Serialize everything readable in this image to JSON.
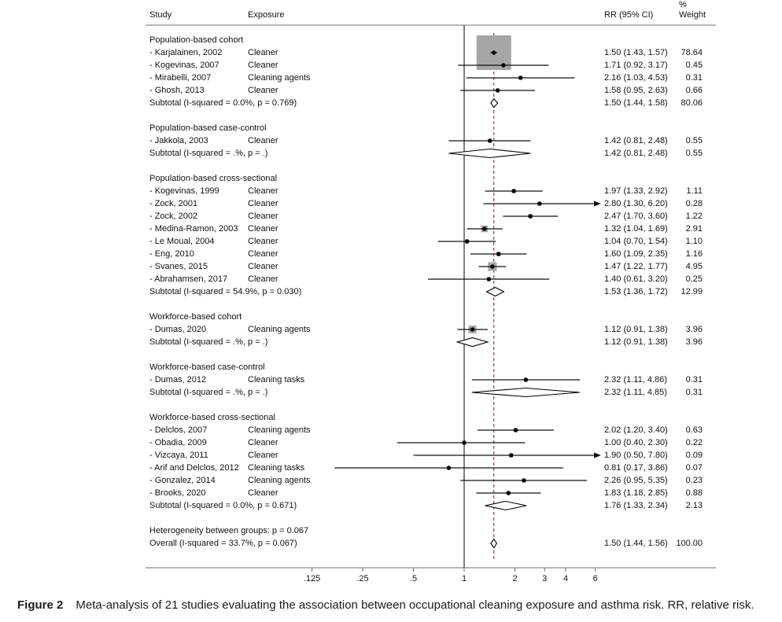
{
  "figure": {
    "caption_label": "Figure 2",
    "caption_text": "Meta-analysis of 21 studies evaluating the association between occupational cleaning exposure and asthma risk. RR, relative risk."
  },
  "header": {
    "study": "Study",
    "exposure": "Exposure",
    "rr": "RR (95% CI)",
    "percent": "%",
    "weight": "Weight"
  },
  "colors": {
    "rule": "#6e6e6e",
    "null_line": "#2b2b2b",
    "overall_dashed_line": "#9e3a4f",
    "ci_line": "#111111",
    "marker_box": "#a6a6a6",
    "marker_dot": "#000000",
    "diamond_fill": "#ffffff",
    "diamond_stroke": "#000000"
  },
  "chart_data": {
    "type": "forest",
    "title": "Meta-analysis of 21 studies: occupational cleaning exposure and asthma risk",
    "x_scale": "log",
    "x_ticks": [
      ".125",
      ".25",
      ".5",
      "1",
      "2",
      "3",
      "4",
      "6"
    ],
    "x_tick_values": [
      0.125,
      0.25,
      0.5,
      1,
      2,
      3,
      4,
      6
    ],
    "x_range": [
      0.1,
      8
    ],
    "null_value": 1,
    "overall_estimate": 1.5,
    "effect_measure": "RR (95% CI)",
    "rows": [
      {
        "type": "group",
        "label": "Population-based cohort"
      },
      {
        "type": "study",
        "study": "- Karjalainen, 2002",
        "exposure": "Cleaner",
        "rr": 1.5,
        "lo": 1.43,
        "hi": 1.57,
        "weight": 78.64,
        "rr_text": "1.50 (1.43, 1.57)",
        "weight_text": "78.64"
      },
      {
        "type": "study",
        "study": "- Kogevinas, 2007",
        "exposure": "Cleaner",
        "rr": 1.71,
        "lo": 0.92,
        "hi": 3.17,
        "weight": 0.45,
        "rr_text": "1.71 (0.92, 3.17)",
        "weight_text": "0.45"
      },
      {
        "type": "study",
        "study": "- Mirabelli, 2007",
        "exposure": "Cleaning agents",
        "rr": 2.16,
        "lo": 1.03,
        "hi": 4.53,
        "weight": 0.31,
        "rr_text": "2.16 (1.03, 4.53)",
        "weight_text": "0.31"
      },
      {
        "type": "study",
        "study": "- Ghosh, 2013",
        "exposure": "Cleaner",
        "rr": 1.58,
        "lo": 0.95,
        "hi": 2.63,
        "weight": 0.66,
        "rr_text": "1.58 (0.95, 2.63)",
        "weight_text": "0.66"
      },
      {
        "type": "subtotal",
        "label": "Subtotal  (I-squared = 0.0%, p = 0.769)",
        "rr": 1.5,
        "lo": 1.44,
        "hi": 1.58,
        "rr_text": "1.50 (1.44, 1.58)",
        "weight_text": "80.06"
      },
      {
        "type": "spacer"
      },
      {
        "type": "group",
        "label": "Population-based case-control"
      },
      {
        "type": "study",
        "study": "- Jakkola, 2003",
        "exposure": "Cleaner",
        "rr": 1.42,
        "lo": 0.81,
        "hi": 2.48,
        "weight": 0.55,
        "rr_text": "1.42 (0.81, 2.48)",
        "weight_text": "0.55"
      },
      {
        "type": "subtotal",
        "label": "Subtotal  (I-squared = .%, p = .)",
        "rr": 1.42,
        "lo": 0.81,
        "hi": 2.48,
        "rr_text": "1.42 (0.81, 2.48)",
        "weight_text": "0.55"
      },
      {
        "type": "spacer"
      },
      {
        "type": "group",
        "label": "Population-based cross-sectional"
      },
      {
        "type": "study",
        "study": "- Kogevinas, 1999",
        "exposure": "Cleaner",
        "rr": 1.97,
        "lo": 1.33,
        "hi": 2.92,
        "weight": 1.11,
        "rr_text": "1.97 (1.33, 2.92)",
        "weight_text": "1.11"
      },
      {
        "type": "study",
        "study": "- Zock, 2001",
        "exposure": "Cleaner",
        "rr": 2.8,
        "lo": 1.3,
        "hi": 6.2,
        "weight": 0.28,
        "rr_text": "2.80 (1.30, 6.20)",
        "weight_text": "0.28",
        "arrow": true
      },
      {
        "type": "study",
        "study": "- Zock, 2002",
        "exposure": "Cleaner",
        "rr": 2.47,
        "lo": 1.7,
        "hi": 3.6,
        "weight": 1.22,
        "rr_text": "2.47 (1.70, 3.60)",
        "weight_text": "1.22"
      },
      {
        "type": "study",
        "study": "- Medina-Ramon, 2003",
        "exposure": "Cleaner",
        "rr": 1.32,
        "lo": 1.04,
        "hi": 1.69,
        "weight": 2.91,
        "rr_text": "1.32 (1.04, 1.69)",
        "weight_text": "2.91"
      },
      {
        "type": "study",
        "study": "- Le Moual, 2004",
        "exposure": "Cleaner",
        "rr": 1.04,
        "lo": 0.7,
        "hi": 1.54,
        "weight": 1.1,
        "rr_text": "1.04 (0.70, 1.54)",
        "weight_text": "1.10"
      },
      {
        "type": "study",
        "study": "- Eng, 2010",
        "exposure": "Cleaner",
        "rr": 1.6,
        "lo": 1.09,
        "hi": 2.35,
        "weight": 1.16,
        "rr_text": "1.60 (1.09, 2.35)",
        "weight_text": "1.16"
      },
      {
        "type": "study",
        "study": "- Svanes, 2015",
        "exposure": "Cleaner",
        "rr": 1.47,
        "lo": 1.22,
        "hi": 1.77,
        "weight": 4.95,
        "rr_text": "1.47 (1.22, 1.77)",
        "weight_text": "4.95"
      },
      {
        "type": "study",
        "study": "- Abrahamsen, 2017",
        "exposure": "Cleaner",
        "rr": 1.4,
        "lo": 0.61,
        "hi": 3.2,
        "weight": 0.25,
        "rr_text": "1.40 (0.61, 3.20)",
        "weight_text": "0.25"
      },
      {
        "type": "subtotal",
        "label": "Subtotal  (I-squared = 54.9%, p = 0.030)",
        "rr": 1.53,
        "lo": 1.36,
        "hi": 1.72,
        "rr_text": "1.53 (1.36, 1.72)",
        "weight_text": "12.99"
      },
      {
        "type": "spacer"
      },
      {
        "type": "group",
        "label": "Workforce-based cohort"
      },
      {
        "type": "study",
        "study": "- Dumas, 2020",
        "exposure": "Cleaning agents",
        "rr": 1.12,
        "lo": 0.91,
        "hi": 1.38,
        "weight": 3.96,
        "rr_text": "1.12 (0.91, 1.38)",
        "weight_text": "3.96"
      },
      {
        "type": "subtotal",
        "label": "Subtotal  (I-squared = .%, p = .)",
        "rr": 1.12,
        "lo": 0.91,
        "hi": 1.38,
        "rr_text": "1.12 (0.91, 1.38)",
        "weight_text": "3.96"
      },
      {
        "type": "spacer"
      },
      {
        "type": "group",
        "label": "Workforce-based case-control"
      },
      {
        "type": "study",
        "study": "- Dumas, 2012",
        "exposure": "Cleaning tasks",
        "rr": 2.32,
        "lo": 1.11,
        "hi": 4.86,
        "weight": 0.31,
        "rr_text": "2.32 (1.11, 4.86)",
        "weight_text": "0.31"
      },
      {
        "type": "subtotal",
        "label": "Subtotal  (I-squared = .%, p = .)",
        "rr": 2.32,
        "lo": 1.11,
        "hi": 4.85,
        "rr_text": "2.32 (1.11, 4.85)",
        "weight_text": "0.31"
      },
      {
        "type": "spacer"
      },
      {
        "type": "group",
        "label": "Workforce-based cross-sectional"
      },
      {
        "type": "study",
        "study": "- Delclos, 2007",
        "exposure": "Cleaning agents",
        "rr": 2.02,
        "lo": 1.2,
        "hi": 3.4,
        "weight": 0.63,
        "rr_text": "2.02 (1.20, 3.40)",
        "weight_text": "0.63"
      },
      {
        "type": "study",
        "study": "- Obadia, 2009",
        "exposure": "Cleaner",
        "rr": 1.0,
        "lo": 0.4,
        "hi": 2.3,
        "weight": 0.22,
        "rr_text": "1.00 (0.40, 2.30)",
        "weight_text": "0.22"
      },
      {
        "type": "study",
        "study": "- Vizcaya, 2011",
        "exposure": "Cleaner",
        "rr": 1.9,
        "lo": 0.5,
        "hi": 7.8,
        "weight": 0.09,
        "rr_text": "1.90 (0.50, 7.80)",
        "weight_text": "0.09",
        "arrow": true
      },
      {
        "type": "study",
        "study": "- Arif and Delclos, 2012",
        "exposure": "Cleaning tasks",
        "rr": 0.81,
        "lo": 0.17,
        "hi": 3.86,
        "weight": 0.07,
        "rr_text": "0.81 (0.17, 3.86)",
        "weight_text": "0.07"
      },
      {
        "type": "study",
        "study": "- Gonzalez, 2014",
        "exposure": "Cleaning agents",
        "rr": 2.26,
        "lo": 0.95,
        "hi": 5.35,
        "weight": 0.23,
        "rr_text": "2.26 (0.95, 5.35)",
        "weight_text": "0.23"
      },
      {
        "type": "study",
        "study": "- Brooks, 2020",
        "exposure": "Cleaner",
        "rr": 1.83,
        "lo": 1.18,
        "hi": 2.85,
        "weight": 0.88,
        "rr_text": "1.83 (1.18, 2.85)",
        "weight_text": "0.88"
      },
      {
        "type": "subtotal",
        "label": "Subtotal  (I-squared = 0.0%, p = 0.671)",
        "rr": 1.76,
        "lo": 1.33,
        "hi": 2.34,
        "rr_text": "1.76 (1.33, 2.34)",
        "weight_text": "2.13"
      },
      {
        "type": "spacer"
      },
      {
        "type": "note",
        "label": "Heterogeneity between groups: p = 0.067"
      },
      {
        "type": "overall",
        "label": "Overall  (I-squared = 33.7%, p = 0.067)",
        "rr": 1.5,
        "lo": 1.44,
        "hi": 1.56,
        "rr_text": "1.50 (1.44, 1.56)",
        "weight_text": "100.00"
      }
    ]
  }
}
